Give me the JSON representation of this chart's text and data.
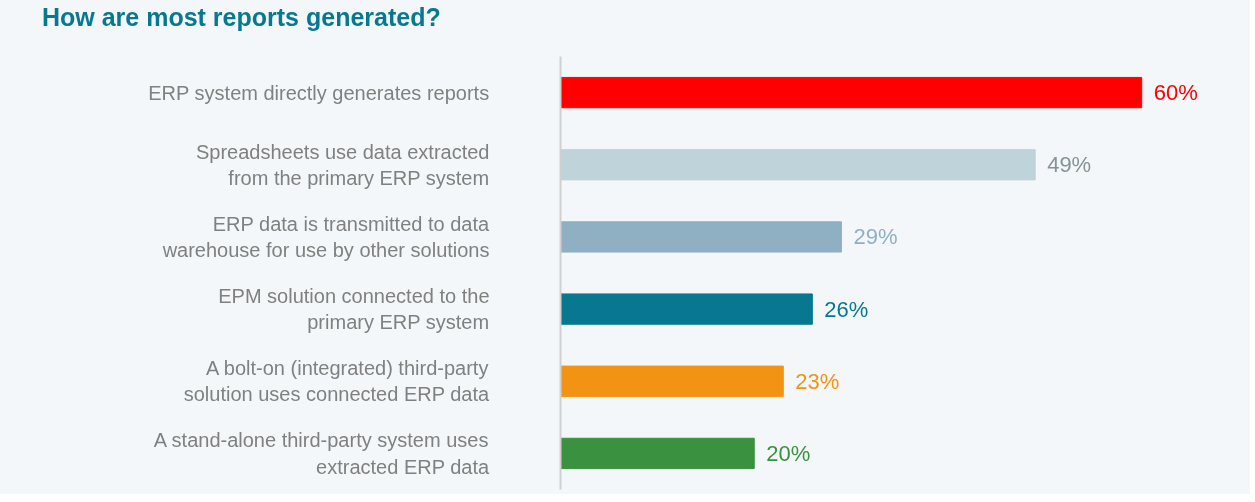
{
  "chart_data": {
    "type": "bar",
    "orientation": "horizontal",
    "title": "How are most reports generated?",
    "categories": [
      "ERP system directly generates reports",
      "Spreadsheets use data extracted\nfrom the primary ERP system",
      "ERP data is transmitted to data\nwarehouse for use by other solutions",
      "EPM solution connected to the\nprimary ERP system",
      "A bolt-on (integrated) third-party\nsolution uses connected ERP data",
      "A stand-alone third-party system uses\nextracted ERP data"
    ],
    "values": [
      60,
      49,
      29,
      26,
      23,
      20
    ],
    "colors": [
      "#ff0000",
      "#bfd3da",
      "#8fb0c3",
      "#087891",
      "#f39313",
      "#3a913f"
    ],
    "value_labels": [
      "60%",
      "49%",
      "29%",
      "26%",
      "23%",
      "20%"
    ],
    "grid": false
  }
}
